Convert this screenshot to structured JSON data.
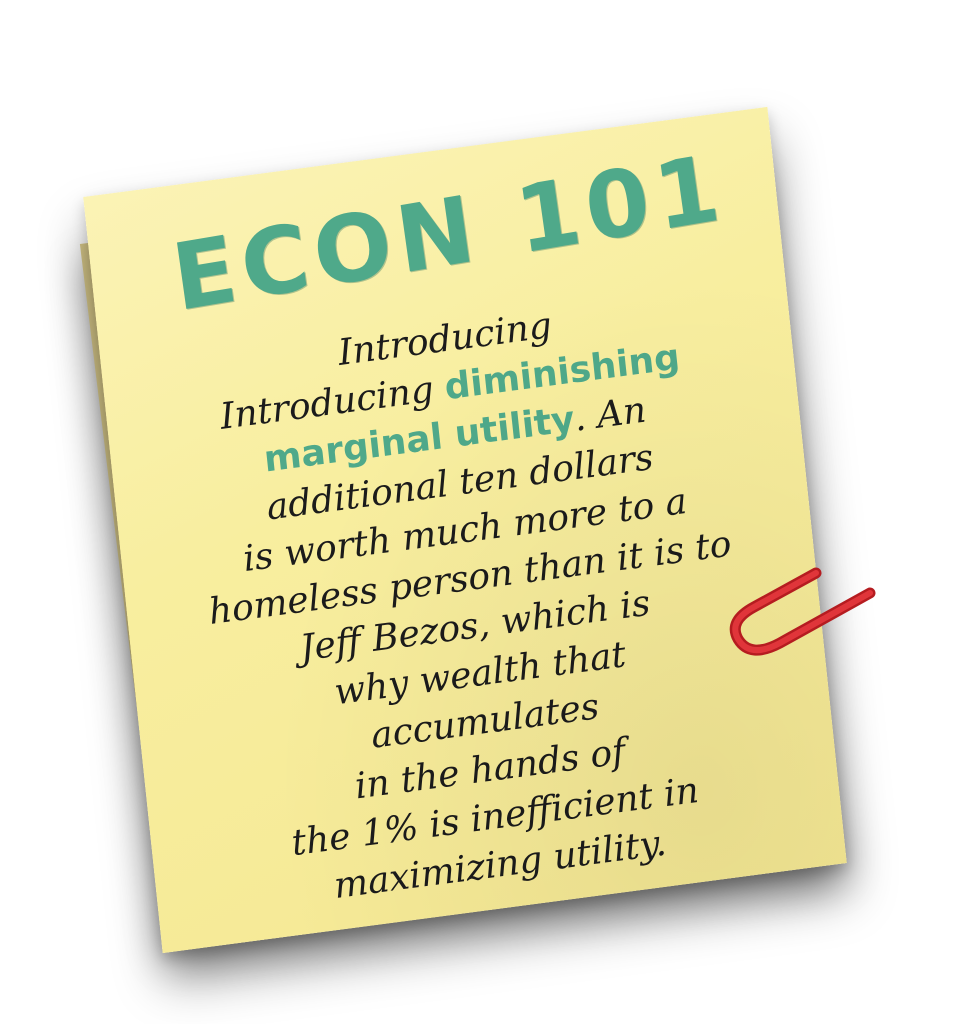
{
  "note": {
    "title": "ECON 101",
    "body_lines": [
      {
        "parts": [
          {
            "text": "Introducing",
            "style": "normal"
          }
        ]
      },
      {
        "parts": [
          {
            "text": "Introducing ",
            "style": "normal"
          },
          {
            "text": "diminishing",
            "style": "highlight"
          }
        ]
      },
      {
        "parts": [
          {
            "text": "marginal utility",
            "style": "highlight"
          },
          {
            "text": ". An",
            "style": "normal"
          }
        ]
      },
      {
        "parts": [
          {
            "text": "additional ten dollars",
            "style": "normal"
          }
        ]
      },
      {
        "parts": [
          {
            "text": "is worth much more to a",
            "style": "normal"
          }
        ]
      },
      {
        "parts": [
          {
            "text": "homeless person than it is to",
            "style": "normal"
          }
        ]
      },
      {
        "parts": [
          {
            "text": "Jeff Bezos, which is",
            "style": "normal"
          }
        ]
      },
      {
        "parts": [
          {
            "text": "why wealth that",
            "style": "normal"
          }
        ]
      },
      {
        "parts": [
          {
            "text": "accumulates",
            "style": "normal"
          }
        ]
      },
      {
        "parts": [
          {
            "text": "in the hands of",
            "style": "normal"
          }
        ]
      },
      {
        "parts": [
          {
            "text": "the 1% is inefficient in",
            "style": "normal"
          }
        ]
      },
      {
        "parts": [
          {
            "text": "maximizing utility.",
            "style": "normal"
          }
        ]
      }
    ]
  },
  "colors": {
    "note_yellow": "#f8ee9f",
    "title_green": "#4fa98a",
    "text_black": "#1b1b1b",
    "clip_red": "#d8262a"
  },
  "icons": {
    "paper_clip": "paper-clip-icon"
  }
}
